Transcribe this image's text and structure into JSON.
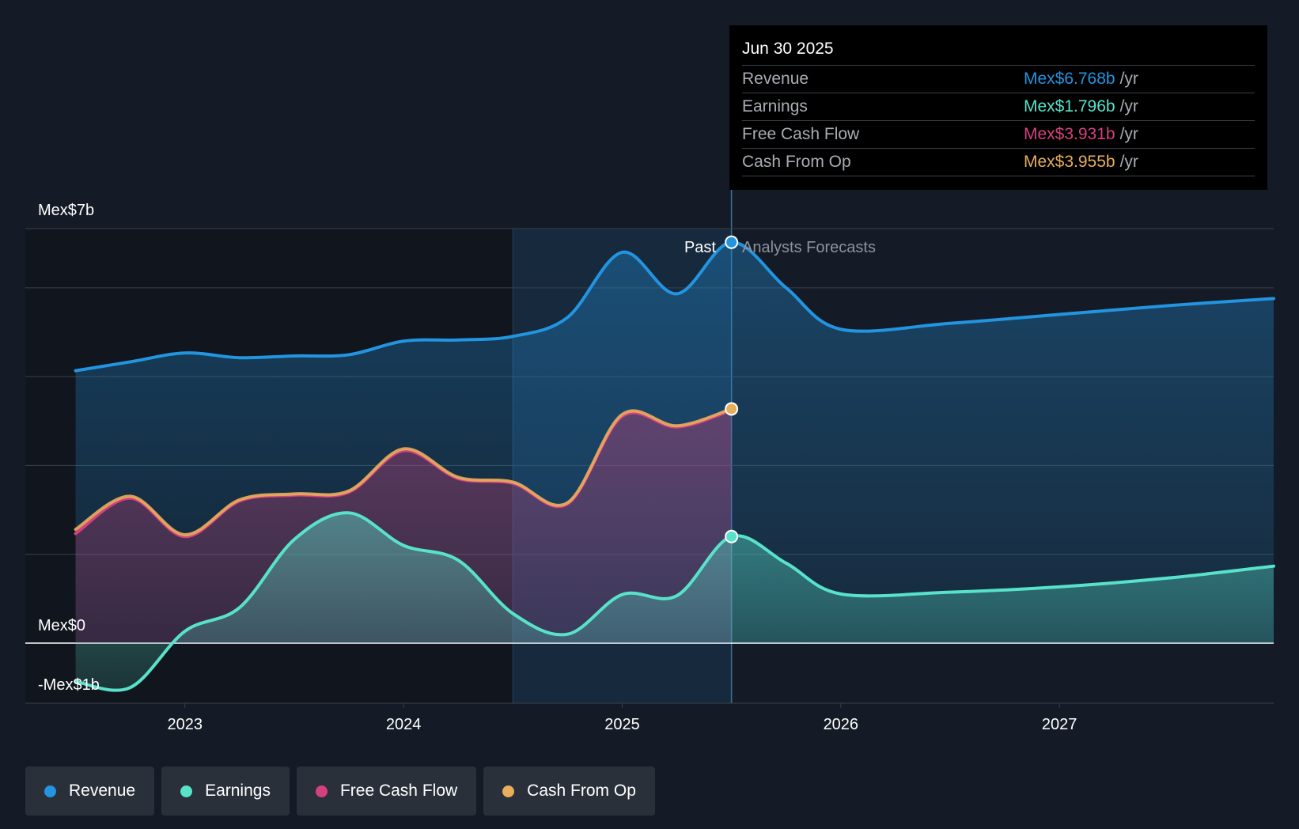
{
  "chart_data": {
    "type": "area",
    "title": "",
    "y_axis": {
      "top_label": "Mex$7b",
      "zero_label": "Mex$0",
      "bottom_label": "-Mex$1b",
      "ylim": [
        -1.0,
        7.0
      ],
      "unit": "Mex$ billions"
    },
    "x_ticks": [
      "2023",
      "2024",
      "2025",
      "2026",
      "2027"
    ],
    "x_tick_values": [
      2023.0,
      2024.0,
      2025.0,
      2026.0,
      2027.0
    ],
    "xlim": [
      2022.27,
      2027.98
    ],
    "regions": {
      "past_label": "Past",
      "forecast_label": "Analysts Forecasts",
      "highlight_start": 2024.5,
      "divider": 2025.5
    },
    "series": [
      {
        "name": "Revenue",
        "color": "#2394e0",
        "x": [
          2022.5,
          2022.75,
          2023.0,
          2023.25,
          2023.5,
          2023.75,
          2024.0,
          2024.25,
          2024.5,
          2024.75,
          2025.0,
          2025.25,
          2025.5,
          2025.75,
          2026.0,
          2026.5,
          2027.0,
          2027.5,
          2027.98
        ],
        "values": [
          4.6,
          4.75,
          4.9,
          4.82,
          4.85,
          4.87,
          5.1,
          5.12,
          5.18,
          5.5,
          6.6,
          5.9,
          6.77,
          6.0,
          5.3,
          5.4,
          5.55,
          5.7,
          5.82
        ]
      },
      {
        "name": "Earnings",
        "color": "#58e2ca",
        "x": [
          2022.5,
          2022.75,
          2023.0,
          2023.25,
          2023.5,
          2023.75,
          2024.0,
          2024.25,
          2024.5,
          2024.75,
          2025.0,
          2025.25,
          2025.5,
          2025.75,
          2026.0,
          2026.5,
          2027.0,
          2027.5,
          2027.98
        ],
        "values": [
          -0.65,
          -0.75,
          0.2,
          0.6,
          1.75,
          2.2,
          1.65,
          1.4,
          0.5,
          0.15,
          0.82,
          0.8,
          1.8,
          1.35,
          0.83,
          0.86,
          0.95,
          1.1,
          1.3
        ]
      },
      {
        "name": "Free Cash Flow",
        "color": "#d4417e",
        "x": [
          2022.5,
          2022.75,
          2023.0,
          2023.25,
          2023.5,
          2023.75,
          2024.0,
          2024.25,
          2024.5,
          2024.75,
          2025.0,
          2025.25,
          2025.5
        ],
        "values": [
          1.85,
          2.45,
          1.8,
          2.4,
          2.5,
          2.55,
          3.25,
          2.78,
          2.7,
          2.35,
          3.83,
          3.65,
          3.931
        ]
      },
      {
        "name": "Cash From Op",
        "color": "#e8ae5c",
        "x": [
          2022.5,
          2022.75,
          2023.0,
          2023.25,
          2023.5,
          2023.75,
          2024.0,
          2024.25,
          2024.5,
          2024.75,
          2025.0,
          2025.25,
          2025.5
        ],
        "values": [
          1.92,
          2.48,
          1.83,
          2.42,
          2.52,
          2.57,
          3.28,
          2.8,
          2.72,
          2.37,
          3.86,
          3.67,
          3.955
        ]
      }
    ],
    "tooltip": {
      "date": "Jun 30 2025",
      "rows": [
        {
          "name": "Revenue",
          "value": "Mex$6.768b",
          "unit": "/yr",
          "color": "#2394e0"
        },
        {
          "name": "Earnings",
          "value": "Mex$1.796b",
          "unit": "/yr",
          "color": "#58e2ca"
        },
        {
          "name": "Free Cash Flow",
          "value": "Mex$3.931b",
          "unit": "/yr",
          "color": "#d4417e"
        },
        {
          "name": "Cash From Op",
          "value": "Mex$3.955b",
          "unit": "/yr",
          "color": "#e8ae5c"
        }
      ]
    },
    "legend": [
      {
        "label": "Revenue",
        "color": "#2394e0"
      },
      {
        "label": "Earnings",
        "color": "#58e2ca"
      },
      {
        "label": "Free Cash Flow",
        "color": "#d4417e"
      },
      {
        "label": "Cash From Op",
        "color": "#e8ae5c"
      }
    ]
  }
}
